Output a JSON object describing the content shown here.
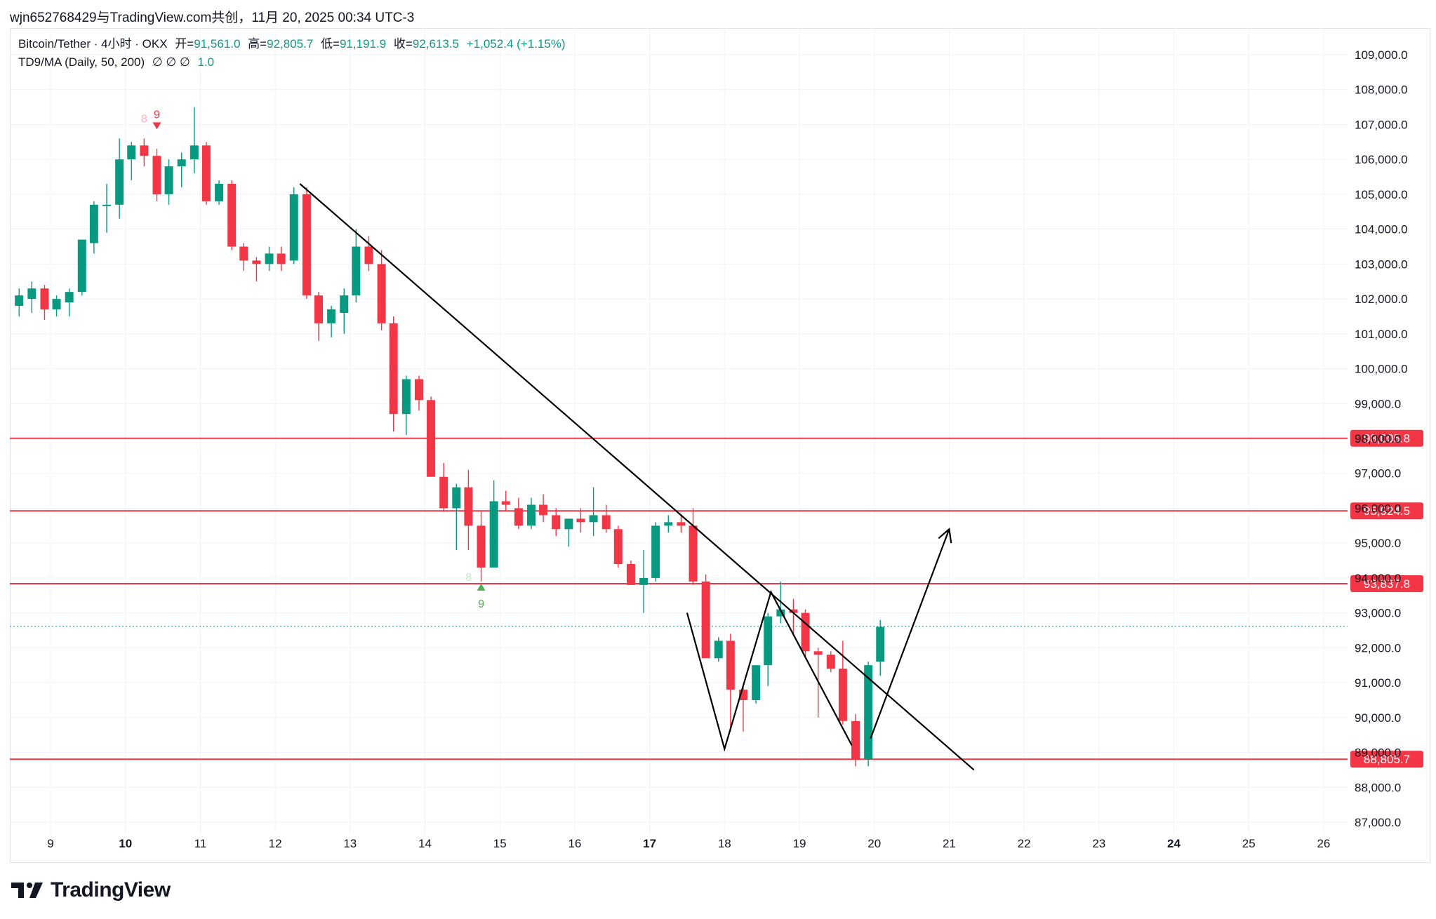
{
  "header": {
    "watermark_line": "wjn652768429与TradingView.com共创，11月 20, 2025 00:34 UTC-3"
  },
  "legend": {
    "symbol": "Bitcoin/Tether · 4小时 · OKX",
    "open_label": "开=",
    "open_value": "91,561.0",
    "high_label": "高=",
    "high_value": "92,805.7",
    "low_label": "低=",
    "low_value": "91,191.9",
    "close_label": "收=",
    "close_value": "92,613.5",
    "change_value": "+1,052.4 (+1.15%)",
    "indicator_name": "TD9/MA (Daily, 50, 200)",
    "indicator_values": "∅ ∅ ∅",
    "indicator_extra": "1.0"
  },
  "footer": {
    "brand": "TradingView"
  },
  "colors": {
    "up": "#089981",
    "down": "#f23645",
    "hline": "#f23645",
    "trend": "#000000",
    "current_price_line": "#089981"
  },
  "chart_data": {
    "type": "candlestick",
    "timeframe": "4h",
    "ylim": [
      86500,
      109500
    ],
    "y_ticks": [
      87000,
      88000,
      89000,
      90000,
      91000,
      92000,
      93000,
      94000,
      95000,
      96000,
      97000,
      98000,
      99000,
      100000,
      101000,
      102000,
      103000,
      104000,
      105000,
      106000,
      107000,
      108000,
      109000
    ],
    "y_tick_labels": [
      "87,000.0",
      "88,000.0",
      "89,000.0",
      "90,000.0",
      "91,000.0",
      "92,000.0",
      "93,000.0",
      "94,000.0",
      "95,000.0",
      "96,000.0",
      "97,000.0",
      "98,000.0",
      "99,000.0",
      "100,000.0",
      "101,000.0",
      "102,000.0",
      "103,000.0",
      "104,000.0",
      "105,000.0",
      "106,000.0",
      "107,000.0",
      "108,000.0",
      "109,000.0"
    ],
    "x_ticks": [
      {
        "day": 9,
        "label": "9",
        "bold": false
      },
      {
        "day": 10,
        "label": "10",
        "bold": true
      },
      {
        "day": 11,
        "label": "11",
        "bold": false
      },
      {
        "day": 12,
        "label": "12",
        "bold": false
      },
      {
        "day": 13,
        "label": "13",
        "bold": false
      },
      {
        "day": 14,
        "label": "14",
        "bold": false
      },
      {
        "day": 15,
        "label": "15",
        "bold": false
      },
      {
        "day": 16,
        "label": "16",
        "bold": false
      },
      {
        "day": 17,
        "label": "17",
        "bold": true
      },
      {
        "day": 18,
        "label": "18",
        "bold": false
      },
      {
        "day": 19,
        "label": "19",
        "bold": false
      },
      {
        "day": 20,
        "label": "20",
        "bold": false
      },
      {
        "day": 21,
        "label": "21",
        "bold": false
      },
      {
        "day": 22,
        "label": "22",
        "bold": false
      },
      {
        "day": 23,
        "label": "23",
        "bold": false
      },
      {
        "day": 24,
        "label": "24",
        "bold": true
      },
      {
        "day": 25,
        "label": "25",
        "bold": false
      },
      {
        "day": 26,
        "label": "26",
        "bold": false
      }
    ],
    "candles": [
      {
        "day": 8.58,
        "o": 101800,
        "h": 102300,
        "l": 101500,
        "c": 102100
      },
      {
        "day": 8.75,
        "o": 102000,
        "h": 102500,
        "l": 101600,
        "c": 102300
      },
      {
        "day": 8.92,
        "o": 102300,
        "h": 102400,
        "l": 101400,
        "c": 101700
      },
      {
        "day": 9.08,
        "o": 101700,
        "h": 102100,
        "l": 101500,
        "c": 102000
      },
      {
        "day": 9.25,
        "o": 101900,
        "h": 102300,
        "l": 101500,
        "c": 102200
      },
      {
        "day": 9.42,
        "o": 102200,
        "h": 103700,
        "l": 102100,
        "c": 103700
      },
      {
        "day": 9.58,
        "o": 103600,
        "h": 104800,
        "l": 103300,
        "c": 104700
      },
      {
        "day": 9.75,
        "o": 104700,
        "h": 105300,
        "l": 103900,
        "c": 104700
      },
      {
        "day": 9.92,
        "o": 104700,
        "h": 106600,
        "l": 104300,
        "c": 106000
      },
      {
        "day": 10.08,
        "o": 106000,
        "h": 106500,
        "l": 105400,
        "c": 106400
      },
      {
        "day": 10.25,
        "o": 106400,
        "h": 106600,
        "l": 105800,
        "c": 106100
      },
      {
        "day": 10.42,
        "o": 106100,
        "h": 106300,
        "l": 104800,
        "c": 105000
      },
      {
        "day": 10.58,
        "o": 105000,
        "h": 106000,
        "l": 104700,
        "c": 105800
      },
      {
        "day": 10.75,
        "o": 105800,
        "h": 106200,
        "l": 105200,
        "c": 106000
      },
      {
        "day": 10.92,
        "o": 106000,
        "h": 107500,
        "l": 105600,
        "c": 106400
      },
      {
        "day": 11.08,
        "o": 106400,
        "h": 106500,
        "l": 104700,
        "c": 104800
      },
      {
        "day": 11.25,
        "o": 104800,
        "h": 105400,
        "l": 104700,
        "c": 105300
      },
      {
        "day": 11.42,
        "o": 105300,
        "h": 105400,
        "l": 103400,
        "c": 103500
      },
      {
        "day": 11.58,
        "o": 103500,
        "h": 103600,
        "l": 102800,
        "c": 103100
      },
      {
        "day": 11.75,
        "o": 103100,
        "h": 103200,
        "l": 102500,
        "c": 103000
      },
      {
        "day": 11.92,
        "o": 103000,
        "h": 103500,
        "l": 102800,
        "c": 103300
      },
      {
        "day": 12.08,
        "o": 103300,
        "h": 103500,
        "l": 102800,
        "c": 103000
      },
      {
        "day": 12.25,
        "o": 103100,
        "h": 105200,
        "l": 103000,
        "c": 105000
      },
      {
        "day": 12.42,
        "o": 105000,
        "h": 105200,
        "l": 102000,
        "c": 102100
      },
      {
        "day": 12.58,
        "o": 102100,
        "h": 102200,
        "l": 100800,
        "c": 101300
      },
      {
        "day": 12.75,
        "o": 101300,
        "h": 101800,
        "l": 100900,
        "c": 101700
      },
      {
        "day": 12.92,
        "o": 101600,
        "h": 102300,
        "l": 101000,
        "c": 102100
      },
      {
        "day": 13.08,
        "o": 102100,
        "h": 104000,
        "l": 101900,
        "c": 103500
      },
      {
        "day": 13.25,
        "o": 103500,
        "h": 103800,
        "l": 102800,
        "c": 103000
      },
      {
        "day": 13.42,
        "o": 103000,
        "h": 103400,
        "l": 101100,
        "c": 101300
      },
      {
        "day": 13.58,
        "o": 101300,
        "h": 101500,
        "l": 98200,
        "c": 98700
      },
      {
        "day": 13.75,
        "o": 98700,
        "h": 99800,
        "l": 98100,
        "c": 99700
      },
      {
        "day": 13.92,
        "o": 99700,
        "h": 99800,
        "l": 98800,
        "c": 99100
      },
      {
        "day": 14.08,
        "o": 99100,
        "h": 99200,
        "l": 96900,
        "c": 96900
      },
      {
        "day": 14.25,
        "o": 96900,
        "h": 97300,
        "l": 95900,
        "c": 96000
      },
      {
        "day": 14.42,
        "o": 96000,
        "h": 96700,
        "l": 94800,
        "c": 96600
      },
      {
        "day": 14.58,
        "o": 96600,
        "h": 97100,
        "l": 94800,
        "c": 95500
      },
      {
        "day": 14.75,
        "o": 95500,
        "h": 95900,
        "l": 93900,
        "c": 94300
      },
      {
        "day": 14.92,
        "o": 94300,
        "h": 96800,
        "l": 94300,
        "c": 96200
      },
      {
        "day": 15.08,
        "o": 96200,
        "h": 96500,
        "l": 95900,
        "c": 96100
      },
      {
        "day": 15.25,
        "o": 96000,
        "h": 96300,
        "l": 95400,
        "c": 95500
      },
      {
        "day": 15.42,
        "o": 95500,
        "h": 96300,
        "l": 95400,
        "c": 96100
      },
      {
        "day": 15.58,
        "o": 96100,
        "h": 96400,
        "l": 95600,
        "c": 95800
      },
      {
        "day": 15.75,
        "o": 95800,
        "h": 96000,
        "l": 95200,
        "c": 95400
      },
      {
        "day": 15.92,
        "o": 95400,
        "h": 95600,
        "l": 94900,
        "c": 95700
      },
      {
        "day": 16.08,
        "o": 95700,
        "h": 96000,
        "l": 95300,
        "c": 95600
      },
      {
        "day": 16.25,
        "o": 95600,
        "h": 96600,
        "l": 95200,
        "c": 95800
      },
      {
        "day": 16.42,
        "o": 95800,
        "h": 96100,
        "l": 95300,
        "c": 95400
      },
      {
        "day": 16.58,
        "o": 95400,
        "h": 95500,
        "l": 94300,
        "c": 94400
      },
      {
        "day": 16.75,
        "o": 94400,
        "h": 94500,
        "l": 93800,
        "c": 93800
      },
      {
        "day": 16.92,
        "o": 93800,
        "h": 94800,
        "l": 93000,
        "c": 94000
      },
      {
        "day": 17.08,
        "o": 94000,
        "h": 95600,
        "l": 93900,
        "c": 95500
      },
      {
        "day": 17.25,
        "o": 95500,
        "h": 95800,
        "l": 95300,
        "c": 95600
      },
      {
        "day": 17.42,
        "o": 95600,
        "h": 95800,
        "l": 95300,
        "c": 95500
      },
      {
        "day": 17.58,
        "o": 95500,
        "h": 96000,
        "l": 93800,
        "c": 93900
      },
      {
        "day": 17.75,
        "o": 93900,
        "h": 94100,
        "l": 91700,
        "c": 91700
      },
      {
        "day": 17.92,
        "o": 91700,
        "h": 92300,
        "l": 91600,
        "c": 92200
      },
      {
        "day": 18.08,
        "o": 92200,
        "h": 92400,
        "l": 89600,
        "c": 90800
      },
      {
        "day": 18.25,
        "o": 90800,
        "h": 90900,
        "l": 89600,
        "c": 90500
      },
      {
        "day": 18.42,
        "o": 90500,
        "h": 91500,
        "l": 90400,
        "c": 91500
      },
      {
        "day": 18.58,
        "o": 91500,
        "h": 93000,
        "l": 90900,
        "c": 92900
      },
      {
        "day": 18.75,
        "o": 92900,
        "h": 93900,
        "l": 92700,
        "c": 93100
      },
      {
        "day": 18.92,
        "o": 93100,
        "h": 93400,
        "l": 92400,
        "c": 93000
      },
      {
        "day": 19.08,
        "o": 93000,
        "h": 93100,
        "l": 91700,
        "c": 91900
      },
      {
        "day": 19.25,
        "o": 91900,
        "h": 92000,
        "l": 90000,
        "c": 91800
      },
      {
        "day": 19.42,
        "o": 91800,
        "h": 91900,
        "l": 91300,
        "c": 91400
      },
      {
        "day": 19.58,
        "o": 91400,
        "h": 92200,
        "l": 89800,
        "c": 89900
      },
      {
        "day": 19.75,
        "o": 89900,
        "h": 90100,
        "l": 88600,
        "c": 88800
      },
      {
        "day": 19.92,
        "o": 88800,
        "h": 91600,
        "l": 88600,
        "c": 91500
      },
      {
        "day": 20.08,
        "o": 91600,
        "h": 92800,
        "l": 91200,
        "c": 92600
      }
    ],
    "horizontal_levels": [
      {
        "price": 98005.8,
        "label": "98,005.8"
      },
      {
        "price": 95924.5,
        "label": "95,924.5"
      },
      {
        "price": 93837.8,
        "label": "93,837.8"
      },
      {
        "price": 88805.7,
        "label": "88,805.7"
      }
    ],
    "current_price": 92613.5,
    "trendline": {
      "from": {
        "day": 12.33,
        "price": 105300
      },
      "to": {
        "day": 21.33,
        "price": 88500
      }
    },
    "pattern_path": [
      {
        "day": 17.5,
        "price": 93000
      },
      {
        "day": 18.0,
        "price": 89100
      },
      {
        "day": 18.62,
        "price": 93600
      },
      {
        "day": 19.7,
        "price": 89200
      }
    ],
    "projection_arrow": {
      "from": {
        "day": 19.95,
        "price": 89400
      },
      "to": {
        "day": 21.0,
        "price": 95400
      }
    },
    "td_markers": [
      {
        "day": 10.42,
        "price": 106900,
        "text": "9",
        "direction": "down",
        "faint_text": "8"
      },
      {
        "day": 14.75,
        "price": 93800,
        "text": "9",
        "direction": "up",
        "faint_text": "8"
      }
    ]
  }
}
